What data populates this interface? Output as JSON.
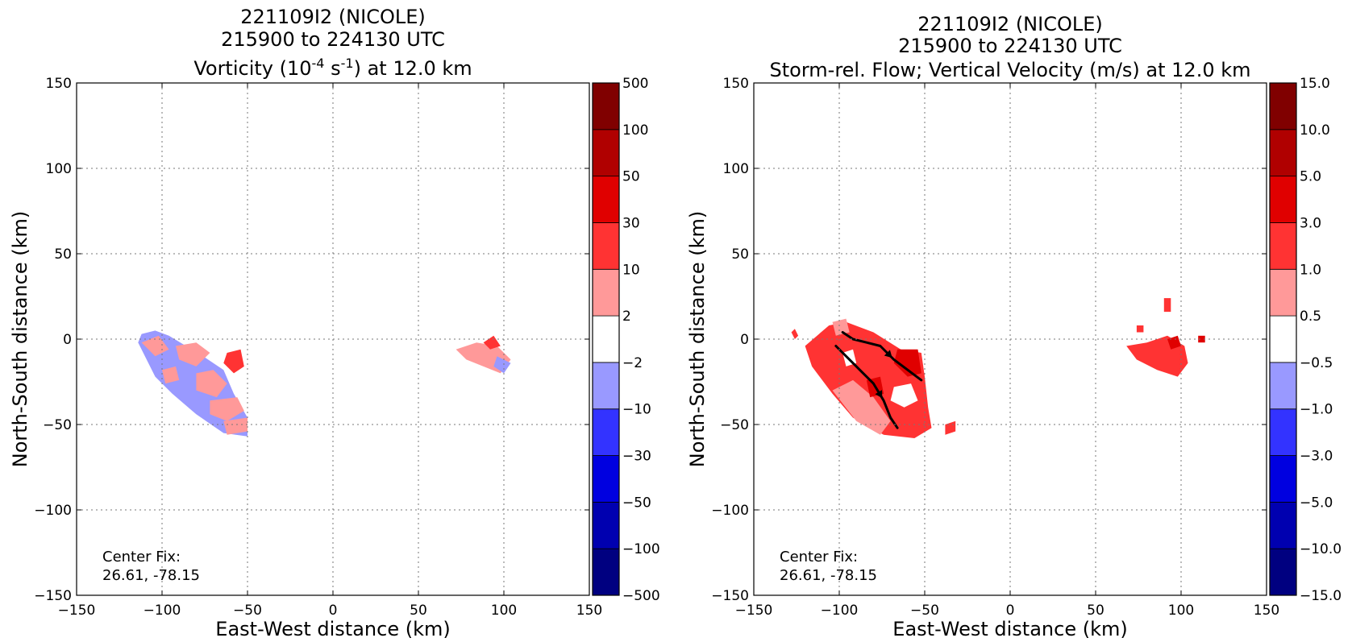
{
  "chart_data": [
    {
      "type": "heatmap",
      "title_lines": [
        "221109I2 (NICOLE)",
        "215900 to 224130 UTC"
      ],
      "title_var": {
        "pre": "Vorticity (10",
        "sup1": "-4",
        "mid": " s",
        "sup2": "-1",
        "post": ") at 12.0 km"
      },
      "xlabel": "East-West distance (km)",
      "ylabel": "North-South distance (km)",
      "xlim": [
        -150,
        150
      ],
      "ylim": [
        -150,
        150
      ],
      "xticks": [
        "−150",
        "−100",
        "−50",
        "0",
        "50",
        "100",
        "150"
      ],
      "yticks": [
        "−150",
        "−100",
        "−50",
        "0",
        "50",
        "100",
        "150"
      ],
      "grid": true,
      "annotation": [
        "Center Fix:",
        "26.61, -78.15"
      ],
      "colorbar": {
        "labels": [
          "−500",
          "−100",
          "−50",
          "−30",
          "−10",
          "−2",
          "2",
          "10",
          "30",
          "50",
          "100",
          "500"
        ],
        "colors": [
          "#000080",
          "#0000b0",
          "#0000e0",
          "#3333ff",
          "#9999ff",
          "#ffffff",
          "#ff9999",
          "#ff3333",
          "#e00000",
          "#b00000",
          "#800000"
        ]
      },
      "regions": [
        {
          "level": "neg2",
          "color": "#9999ff",
          "points": [
            [
              -112,
              3
            ],
            [
              -104,
              5
            ],
            [
              -96,
              2
            ],
            [
              -86,
              -4
            ],
            [
              -76,
              -10
            ],
            [
              -64,
              -18
            ],
            [
              -58,
              -32
            ],
            [
              -50,
              -46
            ],
            [
              -50,
              -57
            ],
            [
              -64,
              -55
            ],
            [
              -80,
              -44
            ],
            [
              -94,
              -32
            ],
            [
              -104,
              -22
            ],
            [
              -110,
              -10
            ],
            [
              -114,
              -2
            ]
          ]
        },
        {
          "level": "pos2",
          "color": "#ff9999",
          "points": [
            [
              -112,
              -2
            ],
            [
              -102,
              2
            ],
            [
              -96,
              -6
            ],
            [
              -104,
              -10
            ]
          ]
        },
        {
          "level": "pos2",
          "color": "#ff9999",
          "points": [
            [
              -92,
              -4
            ],
            [
              -80,
              -2
            ],
            [
              -72,
              -8
            ],
            [
              -80,
              -16
            ],
            [
              -90,
              -12
            ]
          ]
        },
        {
          "level": "pos2",
          "color": "#ff9999",
          "points": [
            [
              -80,
              -20
            ],
            [
              -70,
              -18
            ],
            [
              -62,
              -26
            ],
            [
              -68,
              -34
            ],
            [
              -80,
              -30
            ]
          ]
        },
        {
          "level": "pos2",
          "color": "#ff9999",
          "points": [
            [
              -72,
              -36
            ],
            [
              -56,
              -34
            ],
            [
              -52,
              -42
            ],
            [
              -62,
              -48
            ],
            [
              -72,
              -44
            ]
          ]
        },
        {
          "level": "pos2",
          "color": "#ff9999",
          "points": [
            [
              -64,
              -48
            ],
            [
              -50,
              -46
            ],
            [
              -50,
              -54
            ],
            [
              -62,
              -56
            ]
          ]
        },
        {
          "level": "pos10",
          "color": "#ff3333",
          "points": [
            [
              -62,
              -8
            ],
            [
              -54,
              -6
            ],
            [
              -52,
              -16
            ],
            [
              -58,
              -20
            ],
            [
              -64,
              -14
            ]
          ]
        },
        {
          "level": "pos2",
          "color": "#ff9999",
          "points": [
            [
              -100,
              -18
            ],
            [
              -92,
              -16
            ],
            [
              -90,
              -24
            ],
            [
              -98,
              -26
            ]
          ]
        },
        {
          "level": "pos2",
          "color": "#ff9999",
          "points": [
            [
              72,
              -6
            ],
            [
              84,
              -2
            ],
            [
              96,
              -4
            ],
            [
              104,
              -12
            ],
            [
              98,
              -20
            ],
            [
              88,
              -16
            ],
            [
              78,
              -12
            ]
          ]
        },
        {
          "level": "pos10",
          "color": "#ff3333",
          "points": [
            [
              88,
              -2
            ],
            [
              94,
              2
            ],
            [
              98,
              -4
            ],
            [
              92,
              -6
            ]
          ]
        },
        {
          "level": "neg2",
          "color": "#9999ff",
          "points": [
            [
              96,
              -10
            ],
            [
              104,
              -14
            ],
            [
              100,
              -20
            ],
            [
              94,
              -16
            ]
          ]
        }
      ]
    },
    {
      "type": "heatmap",
      "title_lines": [
        "221109I2 (NICOLE)",
        "215900 to 224130 UTC",
        "Storm-rel. Flow; Vertical Velocity (m/s) at 12.0 km"
      ],
      "xlabel": "East-West distance (km)",
      "ylabel": "North-South distance (km)",
      "xlim": [
        -150,
        150
      ],
      "ylim": [
        -150,
        150
      ],
      "xticks": [
        "−150",
        "−100",
        "−50",
        "0",
        "50",
        "100",
        "150"
      ],
      "yticks": [
        "−150",
        "−100",
        "−50",
        "0",
        "50",
        "100",
        "150"
      ],
      "grid": true,
      "annotation": [
        "Center Fix:",
        "26.61, -78.15"
      ],
      "colorbar": {
        "labels": [
          "−15.0",
          "−10.0",
          "−5.0",
          "−3.0",
          "−1.0",
          "−0.5",
          "0.5",
          "1.0",
          "3.0",
          "5.0",
          "10.0",
          "15.0"
        ],
        "colors": [
          "#000080",
          "#0000b0",
          "#0000e0",
          "#3333ff",
          "#9999ff",
          "#ffffff",
          "#ff9999",
          "#ff3333",
          "#e00000",
          "#b00000",
          "#800000"
        ]
      },
      "regions": [
        {
          "level": "pos10",
          "color": "#ff3333",
          "points": [
            [
              -120,
              -4
            ],
            [
              -106,
              8
            ],
            [
              -96,
              10
            ],
            [
              -80,
              4
            ],
            [
              -64,
              -6
            ],
            [
              -52,
              -8
            ],
            [
              -50,
              -22
            ],
            [
              -48,
              -40
            ],
            [
              -46,
              -52
            ],
            [
              -56,
              -58
            ],
            [
              -74,
              -56
            ],
            [
              -92,
              -46
            ],
            [
              -104,
              -32
            ],
            [
              -116,
              -16
            ]
          ]
        },
        {
          "level": "pos05",
          "color": "#ff9999",
          "points": [
            [
              -104,
              -30
            ],
            [
              -92,
              -24
            ],
            [
              -80,
              -34
            ],
            [
              -70,
              -48
            ],
            [
              -76,
              -56
            ],
            [
              -90,
              -48
            ]
          ]
        },
        {
          "level": "pos05",
          "color": "#ff9999",
          "points": [
            [
              -104,
              10
            ],
            [
              -96,
              12
            ],
            [
              -94,
              4
            ],
            [
              -102,
              2
            ]
          ]
        },
        {
          "level": "white",
          "color": "#ffffff",
          "points": [
            [
              -68,
              -28
            ],
            [
              -58,
              -26
            ],
            [
              -54,
              -36
            ],
            [
              -62,
              -40
            ],
            [
              -70,
              -36
            ]
          ]
        },
        {
          "level": "white",
          "color": "#ffffff",
          "points": [
            [
              -98,
              -8
            ],
            [
              -92,
              -6
            ],
            [
              -90,
              -14
            ],
            [
              -96,
              -16
            ]
          ]
        },
        {
          "level": "pos30",
          "color": "#e00000",
          "points": [
            [
              -66,
              -6
            ],
            [
              -54,
              -6
            ],
            [
              -52,
              -20
            ],
            [
              -60,
              -22
            ],
            [
              -68,
              -14
            ]
          ]
        },
        {
          "level": "pos30",
          "color": "#e00000",
          "points": [
            [
              -84,
              -24
            ],
            [
              -76,
              -22
            ],
            [
              -74,
              -32
            ],
            [
              -82,
              -34
            ]
          ]
        },
        {
          "level": "pos10",
          "color": "#ff3333",
          "points": [
            [
              -38,
              -50
            ],
            [
              -32,
              -48
            ],
            [
              -32,
              -54
            ],
            [
              -38,
              -56
            ]
          ]
        },
        {
          "level": "pos10",
          "color": "#ff3333",
          "points": [
            [
              -128,
              4
            ],
            [
              -126,
              6
            ],
            [
              -124,
              2
            ],
            [
              -126,
              0
            ]
          ]
        },
        {
          "level": "pos10",
          "color": "#ff3333",
          "points": [
            [
              68,
              -4
            ],
            [
              80,
              -2
            ],
            [
              92,
              2
            ],
            [
              102,
              -4
            ],
            [
              104,
              -14
            ],
            [
              98,
              -22
            ],
            [
              86,
              -18
            ],
            [
              74,
              -12
            ]
          ]
        },
        {
          "level": "pos30",
          "color": "#e00000",
          "points": [
            [
              92,
              0
            ],
            [
              98,
              2
            ],
            [
              100,
              -4
            ],
            [
              94,
              -6
            ]
          ]
        },
        {
          "level": "pos10",
          "color": "#ff3333",
          "points": [
            [
              90,
              24
            ],
            [
              94,
              24
            ],
            [
              94,
              16
            ],
            [
              90,
              16
            ]
          ]
        },
        {
          "level": "pos30",
          "color": "#e00000",
          "points": [
            [
              110,
              2
            ],
            [
              114,
              2
            ],
            [
              114,
              -2
            ],
            [
              110,
              -2
            ]
          ]
        },
        {
          "level": "pos10",
          "color": "#ff3333",
          "points": [
            [
              74,
              8
            ],
            [
              78,
              8
            ],
            [
              78,
              4
            ],
            [
              74,
              4
            ]
          ]
        }
      ],
      "streamlines": [
        {
          "points": [
            [
              -98,
              4
            ],
            [
              -92,
              0
            ],
            [
              -84,
              -2
            ],
            [
              -76,
              -4
            ],
            [
              -68,
              -12
            ],
            [
              -60,
              -18
            ],
            [
              -52,
              -24
            ]
          ],
          "arrows_at": [
            3
          ]
        },
        {
          "points": [
            [
              -102,
              -4
            ],
            [
              -94,
              -12
            ],
            [
              -86,
              -20
            ],
            [
              -80,
              -26
            ],
            [
              -74,
              -36
            ],
            [
              -70,
              -46
            ],
            [
              -66,
              -52
            ]
          ],
          "arrows_at": [
            3
          ]
        }
      ]
    }
  ]
}
